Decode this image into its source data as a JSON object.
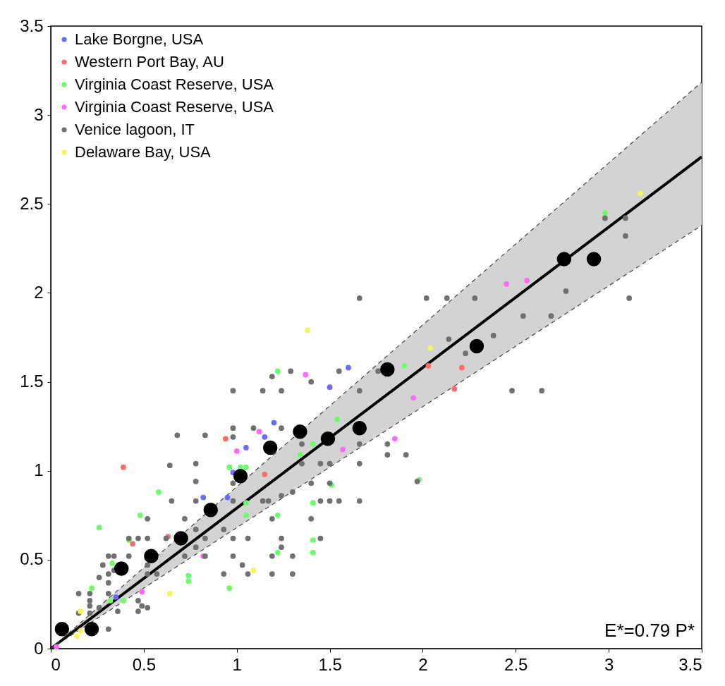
{
  "chart_data": {
    "type": "scatter",
    "xlim": [
      0,
      3.5
    ],
    "ylim": [
      0,
      3.5
    ],
    "xticks": [
      0,
      0.5,
      1,
      1.5,
      2,
      2.5,
      3,
      3.5
    ],
    "yticks": [
      0,
      0.5,
      1,
      1.5,
      2,
      2.5,
      3,
      3.5
    ],
    "legend": "top left",
    "marker": "circle",
    "annotations": [
      "E*=0.79 P*"
    ],
    "series": [
      {
        "name": "Lake Borgne, USA",
        "color": "#6b6bff",
        "x": [
          1.6,
          1.5,
          1.2,
          1.15,
          1.05,
          0.98,
          0.95,
          0.82,
          0.35
        ],
        "values": [
          1.58,
          1.47,
          1.27,
          1.19,
          1.13,
          0.99,
          0.85,
          0.85,
          0.29
        ]
      },
      {
        "name": "Western Port Bay, AU",
        "color": "#ff6b6b",
        "x": [
          0.39,
          0.44,
          0.63,
          0.94,
          1.15,
          2.03,
          2.21,
          2.17
        ],
        "values": [
          1.02,
          0.59,
          0.63,
          1.18,
          0.98,
          1.59,
          1.58,
          1.46
        ]
      },
      {
        "name": "Virginia Coast Reserve, USA",
        "color": "#6bff6b",
        "x": [
          0.58,
          0.48,
          0.26,
          0.42,
          0.33,
          0.22,
          0.32,
          0.39,
          0.74,
          0.74,
          1.22,
          0.96,
          1.02,
          1.05,
          1.41,
          1.34,
          1.54,
          1.51,
          1.05,
          1.05,
          1.22,
          1.41,
          1.41,
          1.41,
          1.22,
          0.96,
          1.9,
          1.98,
          2.98
        ],
        "values": [
          0.88,
          0.75,
          0.68,
          0.61,
          0.48,
          0.34,
          0.27,
          0.27,
          0.41,
          0.38,
          1.56,
          1.02,
          1.02,
          1.02,
          1.15,
          1.09,
          1.29,
          0.92,
          0.82,
          0.75,
          0.75,
          0.82,
          0.61,
          0.54,
          0.54,
          0.34,
          1.59,
          0.95,
          2.45
        ]
      },
      {
        "name": "Virginia Coast Reserve, USA",
        "color": "#ff6bff",
        "x": [
          0.82,
          0.49,
          1.37,
          1.12,
          1.0,
          1.57,
          1.95,
          1.85,
          2.45,
          2.56,
          0.03
        ],
        "values": [
          0.52,
          0.32,
          1.54,
          1.22,
          1.11,
          1.12,
          1.41,
          1.18,
          2.05,
          2.07,
          0.01
        ]
      },
      {
        "name": "Venice lagoon, IT",
        "color": "#707070",
        "x": [
          0.68,
          0.83,
          0.64,
          0.78,
          0.78,
          0.65,
          0.78,
          0.52,
          0.72,
          0.42,
          0.47,
          0.52,
          0.62,
          0.78,
          0.83,
          0.78,
          0.31,
          0.34,
          0.42,
          0.72,
          0.83,
          0.28,
          0.34,
          0.31,
          0.26,
          0.31,
          0.52,
          0.52,
          0.57,
          0.15,
          0.21,
          0.31,
          0.21,
          0.21,
          0.26,
          0.15,
          0.21,
          0.36,
          0.47,
          0.47,
          0.49,
          0.52,
          0.31,
          0.93,
          0.93,
          1.66,
          1.19,
          1.29,
          1.4,
          1.55,
          0.98,
          1.14,
          1.24,
          1.66,
          0.98,
          0.98,
          1.09,
          1.24,
          1.35,
          1.66,
          0.98,
          1.35,
          1.45,
          1.5,
          1.66,
          1.4,
          1.5,
          0.98,
          1.14,
          1.17,
          1.24,
          1.3,
          1.45,
          1.5,
          1.55,
          1.66,
          1.19,
          1.4,
          0.98,
          1.06,
          1.24,
          1.45,
          1.24,
          0.98,
          1.19,
          1.3,
          1.03,
          1.06,
          1.19,
          1.3,
          2.02,
          2.13,
          2.28,
          2.14,
          2.23,
          2.38,
          1.76,
          1.81,
          1.81,
          1.91,
          1.97,
          2.98,
          3.09,
          3.09,
          2.77,
          3.11,
          2.54,
          2.69,
          2.48,
          2.64
        ],
        "values": [
          1.2,
          1.2,
          1.03,
          1.04,
          0.94,
          0.83,
          0.83,
          0.73,
          0.73,
          0.62,
          0.62,
          0.62,
          0.62,
          0.67,
          0.62,
          0.57,
          0.52,
          0.52,
          0.52,
          0.52,
          0.52,
          0.47,
          0.44,
          0.42,
          0.4,
          0.37,
          0.47,
          0.42,
          0.42,
          0.31,
          0.31,
          0.31,
          0.27,
          0.24,
          0.23,
          0.2,
          0.2,
          0.21,
          0.27,
          0.21,
          0.24,
          0.23,
          0.11,
          0.42,
          0.67,
          1.97,
          1.53,
          1.56,
          1.5,
          1.56,
          1.45,
          1.45,
          1.45,
          1.45,
          1.24,
          1.19,
          1.24,
          1.24,
          1.15,
          1.15,
          0.93,
          1.04,
          1.04,
          1.04,
          1.04,
          0.93,
          0.93,
          0.83,
          0.83,
          0.83,
          0.86,
          0.88,
          0.83,
          0.83,
          0.83,
          0.83,
          0.73,
          0.73,
          0.62,
          0.62,
          0.62,
          0.62,
          0.57,
          0.52,
          0.52,
          0.52,
          0.47,
          0.42,
          0.42,
          0.42,
          1.97,
          1.97,
          1.97,
          1.74,
          1.66,
          1.76,
          1.56,
          1.15,
          1.09,
          1.09,
          0.94,
          2.42,
          2.42,
          2.32,
          2.01,
          1.97,
          1.87,
          1.87,
          1.45,
          1.45
        ]
      },
      {
        "name": "Delaware Bay, USA",
        "color": "#f5f55a",
        "x": [
          0.16,
          0.16,
          0.14,
          0.64,
          1.38,
          1.09,
          2.04,
          3.17
        ],
        "values": [
          0.21,
          0.1,
          0.07,
          0.31,
          1.79,
          0.44,
          1.69,
          2.56
        ]
      },
      {
        "color": "#000000",
        "x": [
          0.06,
          0.22,
          0.38,
          0.54,
          0.7,
          0.86,
          1.02,
          1.18,
          1.34,
          1.49,
          1.66,
          1.81,
          2.29,
          2.76,
          2.92
        ],
        "values": [
          0.11,
          0.11,
          0.45,
          0.52,
          0.62,
          0.78,
          0.97,
          1.13,
          1.22,
          1.18,
          1.24,
          1.57,
          1.7,
          2.19,
          2.19
        ]
      },
      {
        "type": "line",
        "color": "#000000",
        "marker": "none",
        "x": [
          0,
          3.5
        ],
        "values": [
          0,
          2.765
        ],
        "lower": [
          0,
          2.38
        ],
        "upper": [
          0,
          3.185
        ]
      },
      {
        "type": "line",
        "color": "#444444",
        "marker": "none",
        "line_style": "dashed",
        "x": [
          0,
          3.5
        ],
        "values": [
          0,
          2.38
        ]
      },
      {
        "type": "line",
        "color": "#444444",
        "marker": "none",
        "line_style": "dashed",
        "x": [
          0,
          3.5
        ],
        "values": [
          0,
          3.185
        ]
      }
    ]
  }
}
